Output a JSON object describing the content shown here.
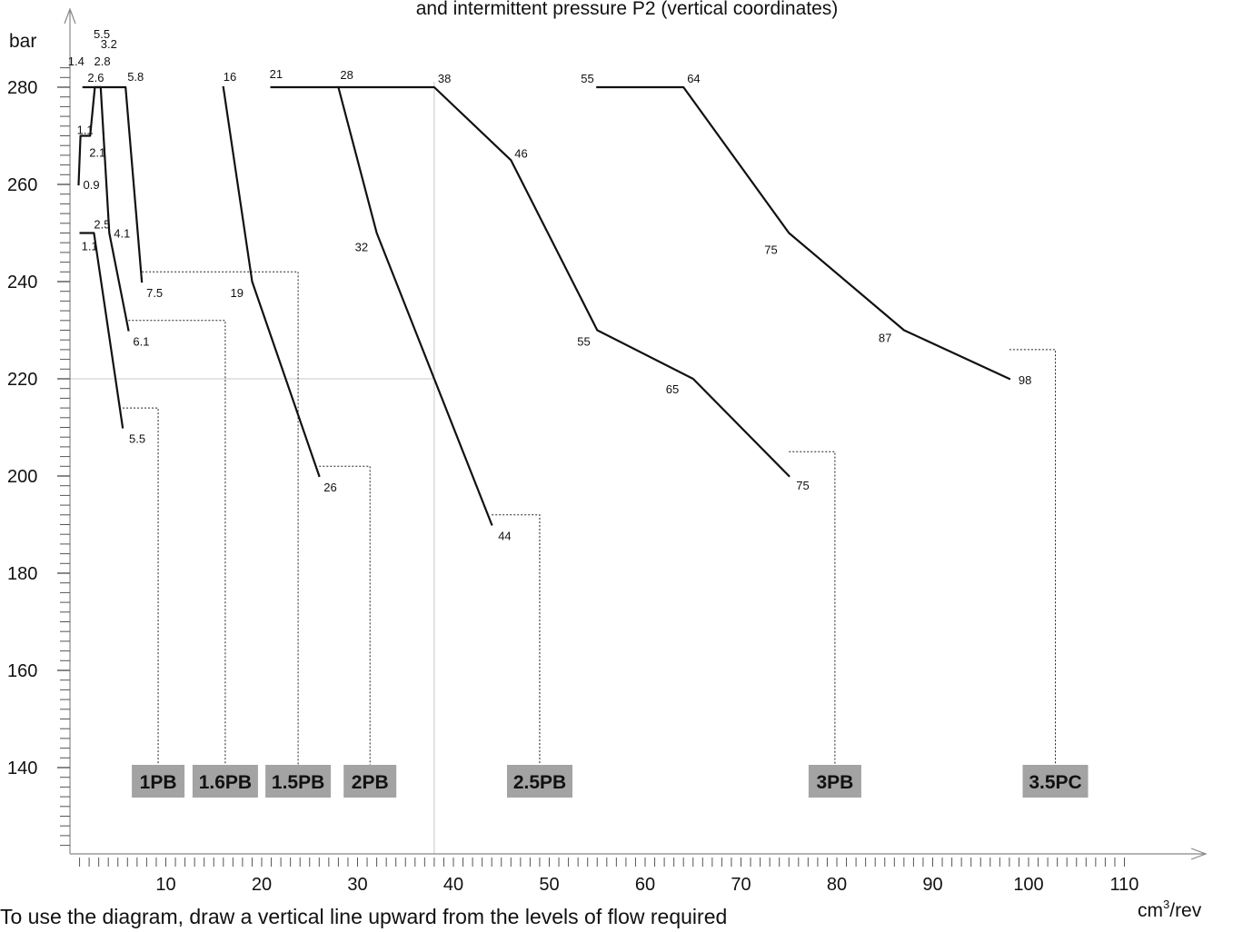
{
  "chart_data": {
    "type": "line",
    "title": "and intermittent pressure P2 (vertical coordinates)",
    "ylabel": "bar",
    "xlabel": "cm³/rev",
    "xlim": [
      0,
      110
    ],
    "ylim": [
      120,
      290
    ],
    "xticks": [
      10,
      20,
      30,
      40,
      50,
      60,
      70,
      80,
      90,
      100,
      110
    ],
    "yticks": [
      140,
      160,
      180,
      200,
      220,
      240,
      260,
      280
    ],
    "grid": false,
    "reference_lines": {
      "x": 38,
      "y": 220
    },
    "series": [
      {
        "name": "1PB",
        "points": [
          [
            1.1,
            250
          ],
          [
            2.5,
            250
          ],
          [
            5.5,
            210
          ]
        ],
        "labels": [
          "1.1",
          "2.5",
          "5.5"
        ],
        "box_x": 9.2,
        "threshold_y": 214
      },
      {
        "name": "1.6PB",
        "points": [
          [
            0.9,
            260
          ],
          [
            1.1,
            270
          ],
          [
            2.1,
            270
          ],
          [
            2.6,
            280
          ],
          [
            3.2,
            280
          ],
          [
            4.1,
            250
          ],
          [
            6.1,
            230
          ]
        ],
        "labels": [
          "0.9",
          "1.1",
          "2.1",
          "2.6",
          "3.2",
          "4.1",
          "6.1"
        ],
        "box_x": 16.2,
        "threshold_y": 232
      },
      {
        "name": "1.5PB",
        "points": [
          [
            1.4,
            280
          ],
          [
            2.8,
            280
          ],
          [
            5.5,
            280
          ],
          [
            5.8,
            280
          ],
          [
            7.5,
            240
          ]
        ],
        "labels": [
          "1.4",
          "2.8",
          "5.5",
          "5.8",
          "7.5"
        ],
        "box_x": 23.8,
        "threshold_y": 242
      },
      {
        "name": "2PB",
        "points": [
          [
            16,
            280
          ],
          [
            19,
            240
          ],
          [
            26,
            200
          ]
        ],
        "labels": [
          "16",
          "19",
          "26"
        ],
        "box_x": 31.3,
        "threshold_y": 202
      },
      {
        "name": "2.5PB",
        "points": [
          [
            21,
            280
          ],
          [
            28,
            280
          ],
          [
            32,
            250
          ],
          [
            44,
            190
          ]
        ],
        "labels": [
          "21",
          "28",
          "32",
          "44"
        ],
        "box_x": 49.0,
        "threshold_y": 192
      },
      {
        "name": "3PB",
        "points": [
          [
            28,
            280
          ],
          [
            38,
            280
          ],
          [
            46,
            265
          ],
          [
            55,
            230
          ],
          [
            65,
            220
          ],
          [
            75,
            200
          ]
        ],
        "labels": [
          "38",
          "46",
          "55",
          "65",
          "75"
        ],
        "box_x": 79.8,
        "threshold_y": 205
      },
      {
        "name": "3.5PC",
        "points": [
          [
            55,
            280
          ],
          [
            64,
            280
          ],
          [
            75,
            250
          ],
          [
            87,
            230
          ],
          [
            98,
            220
          ]
        ],
        "labels": [
          "55",
          "64",
          "75",
          "87",
          "98"
        ],
        "box_x": 102.8,
        "threshold_y": 226
      }
    ],
    "boxes": [
      {
        "label": "1PB",
        "x": 9.2
      },
      {
        "label": "1.6PB",
        "x": 16.2
      },
      {
        "label": "1.5PB",
        "x": 23.8
      },
      {
        "label": "2PB",
        "x": 31.3
      },
      {
        "label": "2.5PB",
        "x": 49.0
      },
      {
        "label": "3PB",
        "x": 79.8
      },
      {
        "label": "3.5PC",
        "x": 102.8
      }
    ],
    "caption": "To use the diagram, draw a vertical line upward from the levels of flow required"
  },
  "colors": {
    "line": "#111111",
    "box": "#a3a3a3",
    "guide": "#c8c8c8",
    "axis": "#888888"
  }
}
